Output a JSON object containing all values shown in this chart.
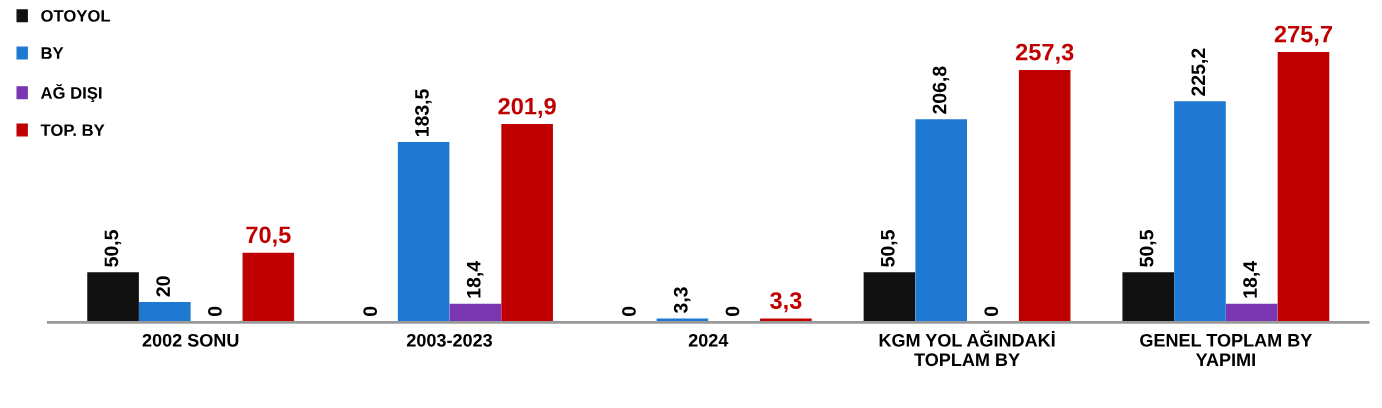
{
  "chart_data": {
    "type": "bar",
    "categories": [
      "2002 SONU",
      "2003-2023",
      "2024",
      "KGM YOL AĞINDAKİ\nTOPLAM BY",
      "GENEL TOPLAM BY\nYAPIMI"
    ],
    "series": [
      {
        "name": "OTOYOL",
        "color": "#111111",
        "values": [
          50.5,
          0,
          0,
          50.5,
          50.5
        ],
        "value_labels": [
          "50,5",
          "0",
          "0",
          "50,5",
          "50,5"
        ]
      },
      {
        "name": "BY",
        "color": "#1f78d1",
        "values": [
          20,
          183.5,
          3.3,
          206.8,
          225.2
        ],
        "value_labels": [
          "20",
          "183,5",
          "3,3",
          "206,8",
          "225,2"
        ]
      },
      {
        "name": "AĞ DIŞI",
        "color": "#7a35b0",
        "values": [
          0,
          18.4,
          0,
          0,
          18.4
        ],
        "value_labels": [
          "0",
          "18,4",
          "0",
          "0",
          "18,4"
        ]
      },
      {
        "name": "TOP. BY",
        "color": "#c00000",
        "values": [
          70.5,
          201.9,
          3.3,
          257.3,
          275.7
        ],
        "value_labels": [
          "70,5",
          "201,9",
          "3,3",
          "257,3",
          "275,7"
        ]
      }
    ],
    "legend": "top left",
    "grid": false
  }
}
